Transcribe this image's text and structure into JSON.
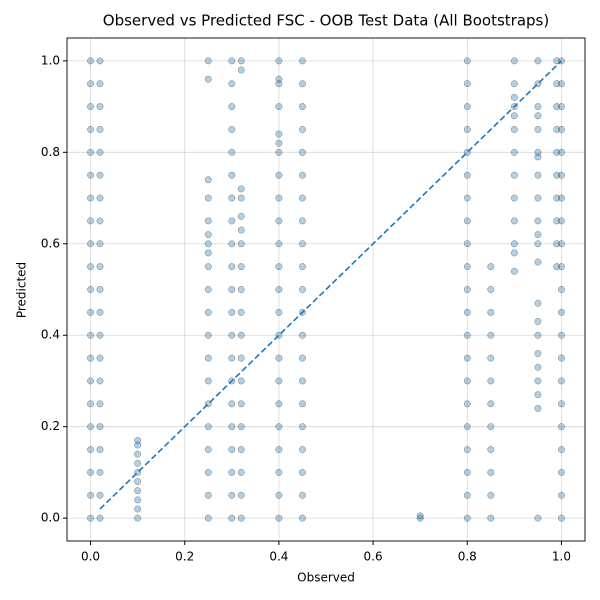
{
  "chart_data": {
    "type": "scatter",
    "title": "Observed vs Predicted FSC - OOB Test Data (All Bootstraps)",
    "x_label": "Observed",
    "y_label": "Predicted",
    "xlim": [
      -0.05,
      1.05
    ],
    "ylim": [
      -0.05,
      1.05
    ],
    "xticks": [
      {
        "value": 0,
        "label": "0.0"
      },
      {
        "value": 0.2,
        "label": "0.2"
      },
      {
        "value": 0.4,
        "label": "0.4"
      },
      {
        "value": 0.6,
        "label": "0.6"
      },
      {
        "value": 0.8,
        "label": "0.8"
      },
      {
        "value": 1,
        "label": "1.0"
      }
    ],
    "yticks": [
      {
        "value": 0,
        "label": "0.0"
      },
      {
        "value": 0.2,
        "label": "0.2"
      },
      {
        "value": 0.4,
        "label": "0.4"
      },
      {
        "value": 0.6,
        "label": "0.6"
      },
      {
        "value": 0.8,
        "label": "0.8"
      },
      {
        "value": 1,
        "label": "1.0"
      }
    ],
    "grid": true,
    "color": "#1f77b4",
    "x": [
      0,
      0,
      0,
      0,
      0,
      0,
      0,
      0,
      0,
      0,
      0,
      0,
      0,
      0,
      0,
      0,
      0,
      0,
      0,
      0,
      0,
      0.02,
      0.02,
      0.02,
      0.02,
      0.02,
      0.02,
      0.02,
      0.02,
      0.02,
      0.02,
      0.02,
      0.02,
      0.02,
      0.02,
      0.02,
      0.02,
      0.02,
      0.02,
      0.02,
      0.02,
      0.02,
      0.1,
      0.1,
      0.1,
      0.1,
      0.1,
      0.1,
      0.1,
      0.1,
      0.1,
      0.1,
      0.25,
      0.25,
      0.25,
      0.25,
      0.25,
      0.25,
      0.25,
      0.25,
      0.25,
      0.25,
      0.25,
      0.25,
      0.25,
      0.25,
      0.25,
      0.25,
      0.25,
      0.25,
      0.25,
      0.25,
      0.3,
      0.3,
      0.3,
      0.3,
      0.3,
      0.3,
      0.3,
      0.3,
      0.3,
      0.3,
      0.3,
      0.3,
      0.3,
      0.3,
      0.3,
      0.3,
      0.3,
      0.3,
      0.3,
      0.3,
      0.3,
      0.32,
      0.32,
      0.32,
      0.32,
      0.32,
      0.32,
      0.32,
      0.32,
      0.32,
      0.32,
      0.32,
      0.32,
      0.32,
      0.32,
      0.32,
      0.32,
      0.32,
      0.32,
      0.32,
      0.4,
      0.4,
      0.4,
      0.4,
      0.4,
      0.4,
      0.4,
      0.4,
      0.4,
      0.4,
      0.4,
      0.4,
      0.4,
      0.4,
      0.4,
      0.4,
      0.4,
      0.4,
      0.4,
      0.4,
      0.4,
      0.4,
      0.4,
      0.45,
      0.45,
      0.45,
      0.45,
      0.45,
      0.45,
      0.45,
      0.45,
      0.45,
      0.45,
      0.45,
      0.45,
      0.45,
      0.45,
      0.45,
      0.45,
      0.45,
      0.45,
      0.45,
      0.45,
      0.45,
      0.7,
      0.7,
      0.8,
      0.8,
      0.8,
      0.8,
      0.8,
      0.8,
      0.8,
      0.8,
      0.8,
      0.8,
      0.8,
      0.8,
      0.8,
      0.8,
      0.8,
      0.8,
      0.8,
      0.8,
      0.8,
      0.8,
      0.8,
      0.85,
      0.85,
      0.85,
      0.85,
      0.85,
      0.85,
      0.85,
      0.85,
      0.85,
      0.85,
      0.85,
      0.85,
      0.9,
      0.9,
      0.9,
      0.9,
      0.9,
      0.9,
      0.9,
      0.9,
      0.9,
      0.9,
      0.9,
      0.9,
      0.9,
      0.95,
      0.95,
      0.95,
      0.95,
      0.95,
      0.95,
      0.95,
      0.95,
      0.95,
      0.95,
      0.95,
      0.95,
      0.95,
      0.95,
      0.95,
      0.95,
      0.95,
      0.95,
      0.95,
      0.95,
      0.95,
      0.95,
      0.99,
      0.99,
      0.99,
      0.99,
      0.99,
      0.99,
      0.99,
      0.99,
      0.99,
      0.99,
      1,
      1,
      1,
      1,
      1,
      1,
      1,
      1,
      1,
      1,
      1,
      1,
      1,
      1,
      1,
      1,
      1,
      1,
      1,
      1,
      1
    ],
    "values": [
      0,
      0.05,
      0.1,
      0.15,
      0.2,
      0.25,
      0.3,
      0.35,
      0.4,
      0.45,
      0.5,
      0.55,
      0.6,
      0.65,
      0.7,
      0.75,
      0.8,
      0.85,
      0.9,
      0.95,
      1,
      0,
      0.05,
      0.1,
      0.15,
      0.2,
      0.25,
      0.3,
      0.35,
      0.4,
      0.45,
      0.5,
      0.55,
      0.6,
      0.65,
      0.7,
      0.75,
      0.8,
      0.85,
      0.9,
      0.95,
      1,
      0,
      0.02,
      0.04,
      0.06,
      0.08,
      0.1,
      0.12,
      0.14,
      0.16,
      0.17,
      0,
      0.05,
      0.1,
      0.15,
      0.2,
      0.25,
      0.3,
      0.35,
      0.4,
      0.45,
      0.5,
      0.55,
      0.58,
      0.6,
      0.62,
      0.65,
      0.7,
      0.74,
      0.96,
      1,
      0,
      0.05,
      0.1,
      0.15,
      0.2,
      0.25,
      0.3,
      0.35,
      0.4,
      0.45,
      0.5,
      0.55,
      0.6,
      0.65,
      0.7,
      0.75,
      0.8,
      0.85,
      0.9,
      0.95,
      1,
      0,
      0.05,
      0.1,
      0.15,
      0.2,
      0.25,
      0.3,
      0.35,
      0.4,
      0.45,
      0.5,
      0.55,
      0.6,
      0.63,
      0.66,
      0.7,
      0.72,
      0.98,
      1,
      0,
      0.05,
      0.1,
      0.15,
      0.2,
      0.25,
      0.3,
      0.35,
      0.4,
      0.45,
      0.5,
      0.55,
      0.6,
      0.65,
      0.7,
      0.75,
      0.8,
      0.82,
      0.84,
      0.9,
      0.95,
      0.96,
      1,
      0,
      0.05,
      0.1,
      0.15,
      0.2,
      0.25,
      0.3,
      0.35,
      0.4,
      0.45,
      0.5,
      0.55,
      0.6,
      0.65,
      0.7,
      0.75,
      0.8,
      0.85,
      0.9,
      0.95,
      1,
      0,
      0.005,
      0,
      0.05,
      0.1,
      0.15,
      0.2,
      0.25,
      0.3,
      0.35,
      0.4,
      0.45,
      0.5,
      0.55,
      0.6,
      0.65,
      0.7,
      0.75,
      0.8,
      0.85,
      0.9,
      0.95,
      1,
      0,
      0.05,
      0.1,
      0.15,
      0.2,
      0.25,
      0.3,
      0.35,
      0.4,
      0.45,
      0.5,
      0.55,
      0.54,
      0.58,
      0.6,
      0.65,
      0.7,
      0.75,
      0.8,
      0.85,
      0.88,
      0.9,
      0.92,
      0.95,
      1,
      0,
      0.24,
      0.27,
      0.3,
      0.33,
      0.36,
      0.4,
      0.43,
      0.47,
      0.56,
      0.6,
      0.62,
      0.65,
      0.7,
      0.75,
      0.79,
      0.8,
      0.85,
      0.88,
      0.9,
      0.95,
      1,
      0.55,
      0.6,
      0.65,
      0.7,
      0.75,
      0.8,
      0.85,
      0.9,
      0.95,
      1,
      0,
      0.05,
      0.1,
      0.15,
      0.2,
      0.25,
      0.3,
      0.35,
      0.4,
      0.45,
      0.5,
      0.55,
      0.6,
      0.65,
      0.7,
      0.75,
      0.8,
      0.85,
      0.9,
      0.95,
      1
    ],
    "reference_line": {
      "x": [
        0.02,
        1
      ],
      "y": [
        0.02,
        1
      ],
      "color": "#1f77b4"
    }
  }
}
